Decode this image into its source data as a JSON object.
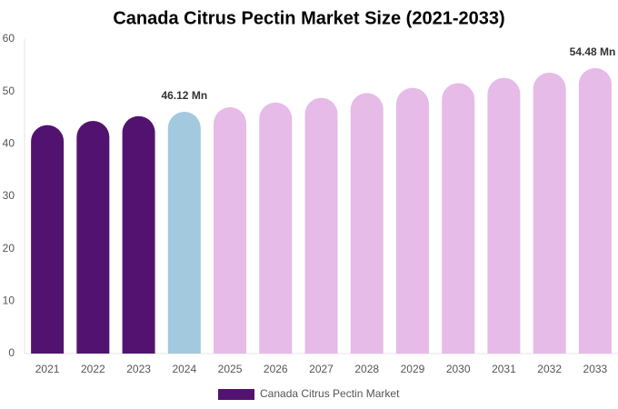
{
  "chart_data": {
    "type": "bar",
    "title": "Canada Citrus Pectin Market Size (2021-2033)",
    "categories": [
      "2021",
      "2022",
      "2023",
      "2024",
      "2025",
      "2026",
      "2027",
      "2028",
      "2029",
      "2030",
      "2031",
      "2032",
      "2033"
    ],
    "series": [
      {
        "name": "Canada Citrus Pectin Market",
        "color": "#521370",
        "values": [
          43.6,
          44.4,
          45.3,
          46.12,
          47.0,
          47.9,
          48.8,
          49.7,
          50.7,
          51.6,
          52.6,
          53.6,
          54.48
        ],
        "value_labels": [
          null,
          null,
          null,
          "46.12 Mn",
          null,
          null,
          null,
          null,
          null,
          null,
          null,
          null,
          "54.48 Mn"
        ],
        "bar_colors": [
          "#521370",
          "#521370",
          "#521370",
          "#a3c9de",
          "#e6bbe8",
          "#e6bbe8",
          "#e6bbe8",
          "#e6bbe8",
          "#e6bbe8",
          "#e6bbe8",
          "#e6bbe8",
          "#e6bbe8",
          "#e6bbe8"
        ]
      }
    ],
    "ylim": [
      0,
      60
    ],
    "yticks": [
      0,
      10,
      20,
      30,
      40,
      50,
      60
    ],
    "grid": false
  }
}
